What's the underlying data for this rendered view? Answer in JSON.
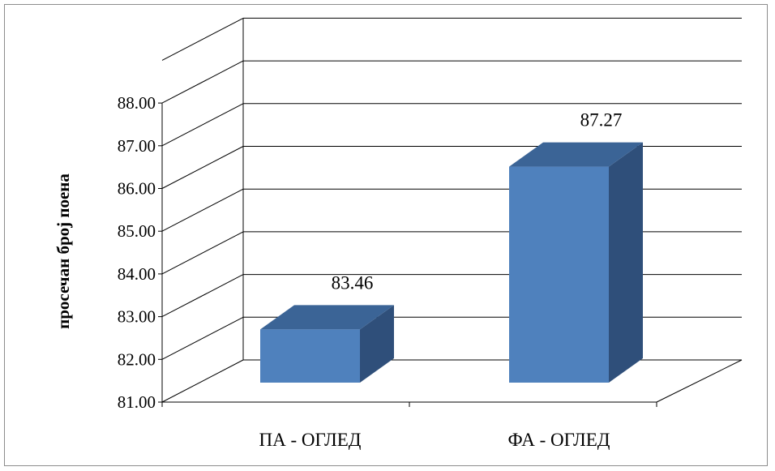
{
  "chart_data": {
    "type": "bar",
    "style": "3d-clustered-column",
    "title": "",
    "xlabel": "",
    "ylabel": "просечан број поена",
    "categories": [
      "ПА - ОГЛЕД",
      "ФА - ОГЛЕД"
    ],
    "values": [
      83.46,
      87.27
    ],
    "data_labels": [
      "83.46",
      "87.27"
    ],
    "ylim": [
      81,
      88
    ],
    "ytick_labels": [
      "81.00",
      "82.00",
      "83.00",
      "84.00",
      "85.00",
      "86.00",
      "87.00",
      "88.00"
    ],
    "grid": true,
    "legend": "none",
    "colors": {
      "bar_front": "#4f81bd",
      "bar_side": "#2f4f7a",
      "bar_top": "#3b6496",
      "grid": "#000000"
    }
  }
}
